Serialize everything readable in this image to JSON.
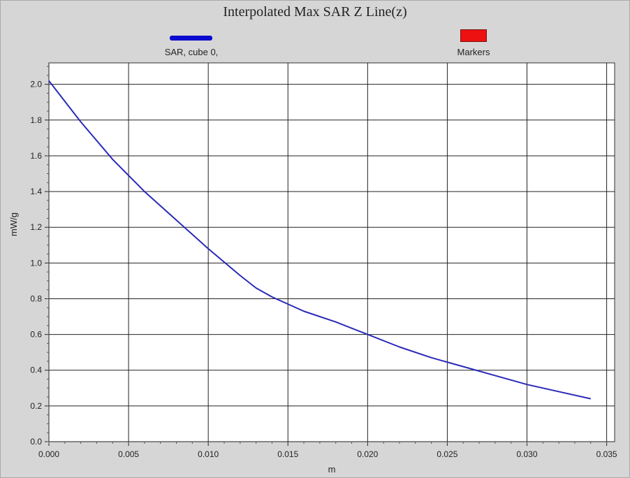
{
  "chart_data": {
    "type": "line",
    "title": "Interpolated Max SAR Z Line(z)",
    "xlabel": "m",
    "ylabel": "mW/g",
    "xlim": [
      0.0,
      0.0355
    ],
    "ylim": [
      0.0,
      2.12
    ],
    "grid": true,
    "legend_position": "top",
    "x_ticks": [
      "0.000",
      "0.005",
      "0.010",
      "0.015",
      "0.020",
      "0.025",
      "0.030",
      "0.035"
    ],
    "y_ticks": [
      "0.0",
      "0.2",
      "0.4",
      "0.6",
      "0.8",
      "1.0",
      "1.2",
      "1.4",
      "1.6",
      "1.8",
      "2.0"
    ],
    "legend": [
      {
        "label": "SAR, cube 0,",
        "type": "line",
        "color": "#0a0ad0"
      },
      {
        "label": "Markers",
        "type": "box",
        "color": "#ee1111"
      }
    ],
    "series": [
      {
        "name": "SAR, cube 0,",
        "color": "#2a2ab8",
        "x": [
          0.0,
          0.002,
          0.004,
          0.006,
          0.008,
          0.01,
          0.012,
          0.013,
          0.014,
          0.015,
          0.016,
          0.018,
          0.02,
          0.022,
          0.024,
          0.026,
          0.028,
          0.03,
          0.032,
          0.034
        ],
        "y": [
          2.02,
          1.79,
          1.58,
          1.4,
          1.24,
          1.08,
          0.93,
          0.86,
          0.81,
          0.77,
          0.73,
          0.67,
          0.6,
          0.53,
          0.47,
          0.42,
          0.37,
          0.32,
          0.28,
          0.24
        ]
      }
    ]
  }
}
